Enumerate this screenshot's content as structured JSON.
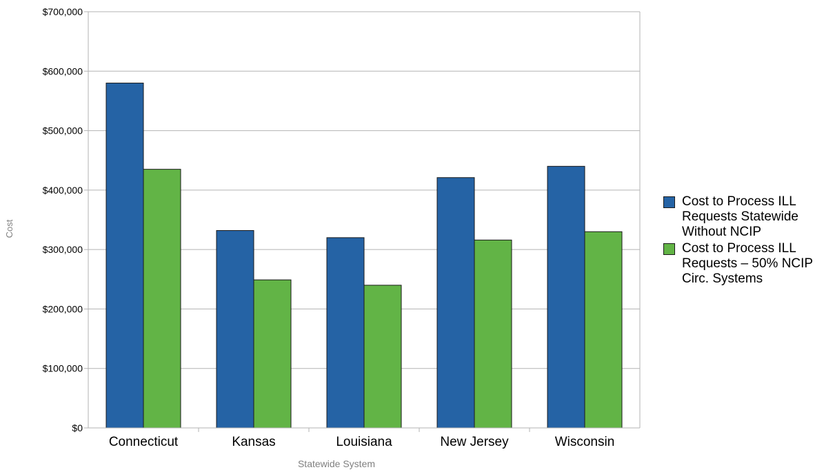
{
  "chart_data": {
    "type": "bar",
    "categories": [
      "Connecticut",
      "Kansas",
      "Louisiana",
      "New Jersey",
      "Wisconsin"
    ],
    "series": [
      {
        "name": "Cost to Process ILL Requests Statewide Without NCIP",
        "values": [
          580000,
          332000,
          320000,
          421000,
          440000
        ],
        "color": "#2563a5"
      },
      {
        "name": "Cost to Process ILL Requests – 50% NCIP Circ. Systems",
        "values": [
          435000,
          249000,
          240000,
          316000,
          330000
        ],
        "color": "#62b446"
      }
    ],
    "xlabel": "Statewide System",
    "ylabel": "Cost",
    "ylim": [
      0,
      700000
    ],
    "yticks": [
      0,
      100000,
      200000,
      300000,
      400000,
      500000,
      600000,
      700000
    ],
    "ytick_labels": [
      "$0",
      "$100,000",
      "$200,000",
      "$300,000",
      "$400,000",
      "$500,000",
      "$600,000",
      "$700,000"
    ],
    "grid": true,
    "legend_position": "right"
  }
}
